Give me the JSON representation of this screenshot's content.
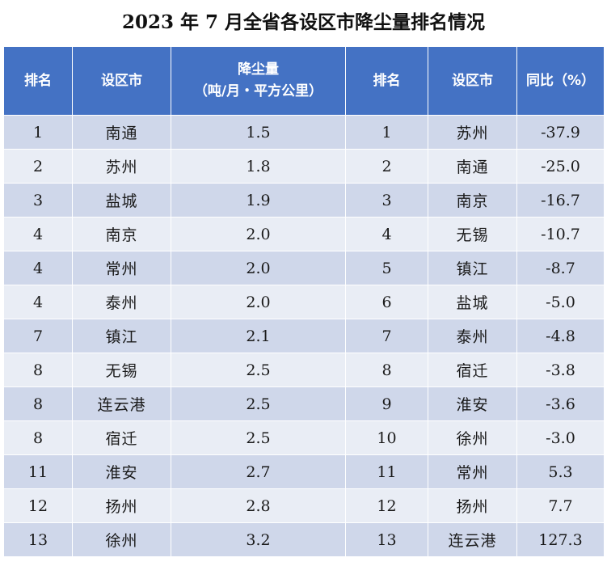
{
  "title": "2023 年 7 月全省各设区市降尘量排名情况",
  "headers": {
    "rank_left": "排名",
    "city_left": "设区市",
    "dust_line1": "降尘量",
    "dust_line2": "（吨/月・平方公里）",
    "rank_right": "排名",
    "city_right": "设区市",
    "yoy": "同比（%）"
  },
  "rows": [
    {
      "rank": "1",
      "city": "南通",
      "dust": "1.5",
      "rank2": "1",
      "city2": "苏州",
      "yoy": "-37.9"
    },
    {
      "rank": "2",
      "city": "苏州",
      "dust": "1.8",
      "rank2": "2",
      "city2": "南通",
      "yoy": "-25.0"
    },
    {
      "rank": "3",
      "city": "盐城",
      "dust": "1.9",
      "rank2": "3",
      "city2": "南京",
      "yoy": "-16.7"
    },
    {
      "rank": "4",
      "city": "南京",
      "dust": "2.0",
      "rank2": "4",
      "city2": "无锡",
      "yoy": "-10.7"
    },
    {
      "rank": "4",
      "city": "常州",
      "dust": "2.0",
      "rank2": "5",
      "city2": "镇江",
      "yoy": "-8.7"
    },
    {
      "rank": "4",
      "city": "泰州",
      "dust": "2.0",
      "rank2": "6",
      "city2": "盐城",
      "yoy": "-5.0"
    },
    {
      "rank": "7",
      "city": "镇江",
      "dust": "2.1",
      "rank2": "7",
      "city2": "泰州",
      "yoy": "-4.8"
    },
    {
      "rank": "8",
      "city": "无锡",
      "dust": "2.5",
      "rank2": "8",
      "city2": "宿迁",
      "yoy": "-3.8"
    },
    {
      "rank": "8",
      "city": "连云港",
      "dust": "2.5",
      "rank2": "9",
      "city2": "淮安",
      "yoy": "-3.6"
    },
    {
      "rank": "8",
      "city": "宿迁",
      "dust": "2.5",
      "rank2": "10",
      "city2": "徐州",
      "yoy": "-3.0"
    },
    {
      "rank": "11",
      "city": "淮安",
      "dust": "2.7",
      "rank2": "11",
      "city2": "常州",
      "yoy": "5.3"
    },
    {
      "rank": "12",
      "city": "扬州",
      "dust": "2.8",
      "rank2": "12",
      "city2": "扬州",
      "yoy": "7.7"
    },
    {
      "rank": "13",
      "city": "徐州",
      "dust": "3.2",
      "rank2": "13",
      "city2": "连云港",
      "yoy": "127.3"
    }
  ]
}
